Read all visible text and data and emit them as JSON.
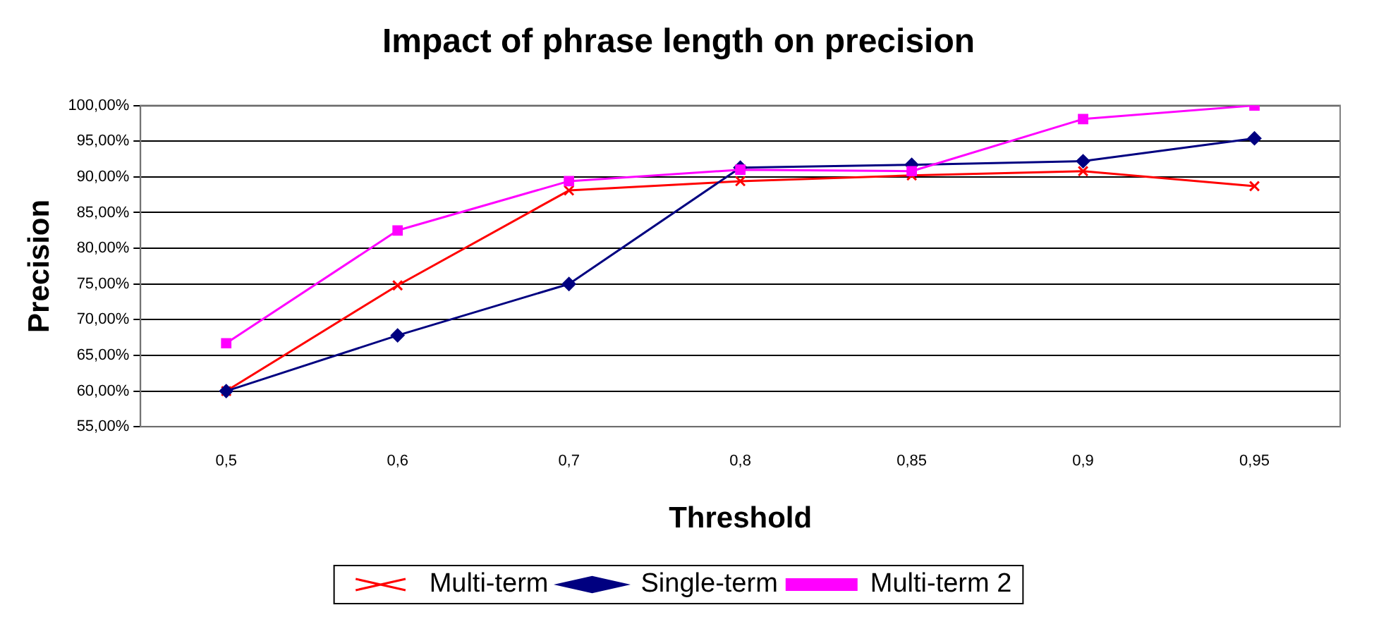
{
  "chart_data": {
    "type": "line",
    "title": "Impact of phrase length on precision",
    "xlabel": "Threshold",
    "ylabel": "Precision",
    "categories": [
      "0,5",
      "0,6",
      "0,7",
      "0,8",
      "0,85",
      "0,9",
      "0,95"
    ],
    "series": [
      {
        "name": "Multi-term",
        "color": "#ff0000",
        "marker": "cross",
        "values": [
          60.0,
          74.8,
          88.1,
          89.4,
          90.2,
          90.8,
          88.7
        ]
      },
      {
        "name": "Single-term",
        "color": "#000080",
        "marker": "diamond",
        "values": [
          60.0,
          67.8,
          75.0,
          91.3,
          91.7,
          92.2,
          95.4
        ]
      },
      {
        "name": "Multi-term 2",
        "color": "#ff00ff",
        "marker": "square",
        "values": [
          66.7,
          82.5,
          89.4,
          91.0,
          90.8,
          98.1,
          100.0
        ]
      }
    ],
    "ylim": [
      55,
      100
    ],
    "yticks": [
      {
        "value": 55,
        "label": "55,00%"
      },
      {
        "value": 60,
        "label": "60,00%"
      },
      {
        "value": 65,
        "label": "65,00%"
      },
      {
        "value": 70,
        "label": "70,00%"
      },
      {
        "value": 75,
        "label": "75,00%"
      },
      {
        "value": 80,
        "label": "80,00%"
      },
      {
        "value": 85,
        "label": "85,00%"
      },
      {
        "value": 90,
        "label": "90,00%"
      },
      {
        "value": 95,
        "label": "95,00%"
      },
      {
        "value": 100,
        "label": "100,00%"
      }
    ],
    "grid": "y",
    "legend": "bottom",
    "line_style": "solid"
  }
}
